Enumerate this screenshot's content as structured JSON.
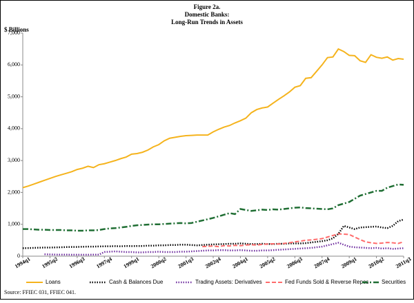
{
  "chart_data": {
    "type": "line",
    "title": "Figure 2a.",
    "subtitle": "Domestic Banks:",
    "subtitle2": "Long-Run Trends in Assets",
    "ylabel": "$ Billions",
    "source": "Source: FFIEC 031, FFIEC 041.",
    "categories": [
      "1994q1",
      null,
      null,
      null,
      null,
      "1995q2",
      null,
      null,
      null,
      null,
      "1996q3",
      null,
      null,
      null,
      null,
      "1997q4",
      null,
      null,
      null,
      null,
      "1999q1",
      null,
      null,
      null,
      null,
      "2000q2",
      null,
      null,
      null,
      null,
      "2001q3",
      null,
      null,
      null,
      null,
      "2002q4",
      null,
      null,
      null,
      null,
      "2004q1",
      null,
      null,
      null,
      null,
      "2005q2",
      null,
      null,
      null,
      null,
      "2006q3",
      null,
      null,
      null,
      null,
      "2007q4",
      null,
      null,
      null,
      null,
      "2009q1",
      null,
      null,
      null,
      null,
      "2010q2",
      null,
      null,
      null,
      null,
      "2011q3"
    ],
    "ylim": [
      0,
      7000
    ],
    "yticks": [
      0,
      {
        "value": 1000,
        "label": "1,000"
      },
      {
        "value": 2000,
        "label": "2,000"
      },
      {
        "value": 3000,
        "label": "3,000"
      },
      {
        "value": 4000,
        "label": "4,000"
      },
      {
        "value": 5000,
        "label": "5,000"
      },
      {
        "value": 6000,
        "label": "6,000"
      },
      {
        "value": 7000,
        "label": "7,000"
      }
    ],
    "grid": false,
    "series": [
      {
        "name": "Loans",
        "color": "#f5b31c",
        "dash": "solid",
        "values": [
          2150,
          2200,
          2260,
          2320,
          2380,
          2440,
          2500,
          2550,
          2600,
          2650,
          2720,
          2760,
          2820,
          2780,
          2870,
          2900,
          2950,
          3000,
          3060,
          3110,
          3200,
          3220,
          3260,
          3330,
          3430,
          3500,
          3620,
          3700,
          3730,
          3760,
          3780,
          3790,
          3800,
          3800,
          3800,
          3900,
          3980,
          4050,
          4100,
          4180,
          4250,
          4330,
          4500,
          4600,
          4650,
          4680,
          4800,
          4920,
          5030,
          5150,
          5300,
          5350,
          5580,
          5600,
          5800,
          6000,
          6230,
          6250,
          6500,
          6420,
          6300,
          6290,
          6130,
          6080,
          6320,
          6240,
          6210,
          6250,
          6150,
          6200,
          6180
        ]
      },
      {
        "name": "Cash & Balances Due",
        "color": "#000000",
        "dash": "dotted",
        "values": [
          250,
          255,
          260,
          265,
          270,
          270,
          275,
          280,
          285,
          290,
          290,
          295,
          300,
          300,
          305,
          310,
          310,
          315,
          310,
          320,
          315,
          320,
          320,
          330,
          330,
          340,
          340,
          350,
          350,
          360,
          360,
          350,
          340,
          350,
          360,
          370,
          375,
          380,
          390,
          390,
          400,
          390,
          380,
          380,
          390,
          380,
          380,
          390,
          390,
          400,
          400,
          400,
          410,
          430,
          450,
          470,
          500,
          560,
          700,
          950,
          900,
          850,
          900,
          910,
          920,
          930,
          900,
          880,
          950,
          1100,
          1150
        ]
      },
      {
        "name": "Trading Assets: Derivatives",
        "color": "#7030a0",
        "dash": "dotted",
        "values": [
          null,
          null,
          null,
          null,
          60,
          55,
          50,
          50,
          50,
          45,
          45,
          45,
          45,
          50,
          50,
          130,
          140,
          150,
          140,
          130,
          130,
          120,
          120,
          130,
          130,
          140,
          130,
          130,
          130,
          140,
          140,
          150,
          160,
          170,
          180,
          180,
          190,
          190,
          180,
          180,
          190,
          180,
          170,
          170,
          180,
          180,
          190,
          200,
          210,
          220,
          230,
          240,
          250,
          260,
          280,
          300,
          340,
          380,
          420,
          360,
          300,
          280,
          270,
          260,
          250,
          260,
          240,
          250,
          230,
          240,
          250
        ]
      },
      {
        "name": "Fed Funds Sold & Reverse Repos",
        "color": "#ff6b6b",
        "dash": "dashed",
        "values": [
          null,
          null,
          null,
          null,
          null,
          null,
          null,
          null,
          null,
          null,
          null,
          null,
          null,
          null,
          null,
          null,
          null,
          null,
          null,
          null,
          null,
          null,
          null,
          null,
          null,
          null,
          null,
          null,
          null,
          null,
          null,
          null,
          null,
          300,
          310,
          320,
          300,
          330,
          320,
          340,
          330,
          350,
          360,
          350,
          370,
          380,
          390,
          380,
          400,
          420,
          450,
          470,
          500,
          510,
          530,
          550,
          600,
          650,
          700,
          690,
          680,
          600,
          520,
          450,
          420,
          400,
          410,
          430,
          420,
          400,
          450
        ]
      },
      {
        "name": "Securities",
        "color": "#1f6e33",
        "dash": "dashdot",
        "values": [
          850,
          850,
          840,
          830,
          830,
          820,
          820,
          820,
          810,
          810,
          800,
          800,
          810,
          810,
          820,
          850,
          870,
          880,
          900,
          920,
          950,
          970,
          980,
          990,
          1000,
          1000,
          1010,
          1020,
          1030,
          1040,
          1030,
          1040,
          1080,
          1120,
          1160,
          1200,
          1250,
          1300,
          1350,
          1320,
          1480,
          1450,
          1420,
          1440,
          1460,
          1450,
          1470,
          1460,
          1480,
          1500,
          1520,
          1530,
          1510,
          1500,
          1490,
          1480,
          1470,
          1500,
          1600,
          1650,
          1700,
          1800,
          1900,
          1950,
          2000,
          2050,
          2050,
          2150,
          2200,
          2250,
          2240
        ]
      }
    ]
  }
}
